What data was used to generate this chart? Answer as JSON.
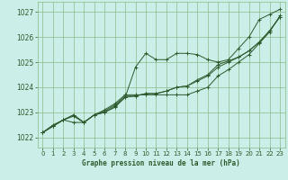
{
  "title": "Graphe pression niveau de la mer (hPa)",
  "bg_color": "#cceee8",
  "grid_color": "#88bb88",
  "line_color": "#2d5a2d",
  "marker": "+",
  "xlim": [
    -0.5,
    23.5
  ],
  "ylim": [
    1021.6,
    1027.4
  ],
  "yticks": [
    1022,
    1023,
    1024,
    1025,
    1026,
    1027
  ],
  "xticks": [
    0,
    1,
    2,
    3,
    4,
    5,
    6,
    7,
    8,
    9,
    10,
    11,
    12,
    13,
    14,
    15,
    16,
    17,
    18,
    19,
    20,
    21,
    22,
    23
  ],
  "series": [
    [
      1022.2,
      1022.5,
      1022.7,
      1022.6,
      1022.6,
      1022.9,
      1023.0,
      1023.2,
      1023.6,
      1024.8,
      1025.35,
      1025.1,
      1025.1,
      1025.35,
      1025.35,
      1025.3,
      1025.1,
      1025.0,
      1025.1,
      1025.55,
      1026.0,
      1026.7,
      1026.9,
      1027.1
    ],
    [
      1022.2,
      1022.45,
      1022.7,
      1022.85,
      1022.6,
      1022.9,
      1023.0,
      1023.25,
      1023.6,
      1023.65,
      1023.75,
      1023.75,
      1023.85,
      1024.0,
      1024.05,
      1024.25,
      1024.45,
      1024.8,
      1025.0,
      1025.2,
      1025.45,
      1025.8,
      1026.25,
      1026.8
    ],
    [
      1022.2,
      1022.45,
      1022.7,
      1022.9,
      1022.6,
      1022.9,
      1023.05,
      1023.3,
      1023.65,
      1023.65,
      1023.75,
      1023.75,
      1023.85,
      1024.0,
      1024.05,
      1024.3,
      1024.5,
      1024.9,
      1025.05,
      1025.2,
      1025.45,
      1025.8,
      1026.25,
      1026.8
    ],
    [
      1022.2,
      1022.45,
      1022.7,
      1022.9,
      1022.6,
      1022.9,
      1023.1,
      1023.35,
      1023.7,
      1023.7,
      1023.7,
      1023.7,
      1023.7,
      1023.7,
      1023.7,
      1023.85,
      1024.0,
      1024.45,
      1024.7,
      1025.0,
      1025.3,
      1025.75,
      1026.2,
      1026.85
    ]
  ]
}
